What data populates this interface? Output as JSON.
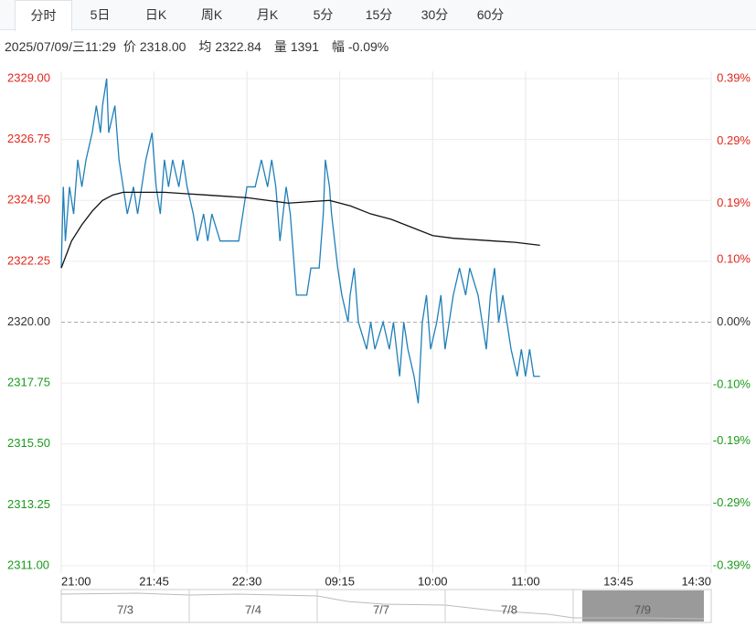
{
  "tabs": [
    "分时",
    "5日",
    "日K",
    "周K",
    "月K",
    "5分",
    "15分",
    "30分",
    "60分"
  ],
  "info": {
    "time": "2025/07/09/三11:29",
    "price_label": "价",
    "price": "2318.00",
    "avg_label": "均",
    "avg": "2322.84",
    "volume_label": "量",
    "volume": "1391",
    "change_label": "幅",
    "change": "-0.09%"
  },
  "chart_data": {
    "type": "line",
    "xlim": [
      0,
      315
    ],
    "xticks": [
      {
        "value": 0,
        "label": "21:00"
      },
      {
        "value": 45,
        "label": "21:45"
      },
      {
        "value": 90,
        "label": "22:30"
      },
      {
        "value": 135,
        "label": "09:15"
      },
      {
        "value": 180,
        "label": "10:00"
      },
      {
        "value": 225,
        "label": "11:00"
      },
      {
        "value": 270,
        "label": "13:45"
      },
      {
        "value": 315,
        "label": "14:30"
      }
    ],
    "ylim": [
      2311,
      2329
    ],
    "yticks": [
      {
        "value": 2329,
        "label": "2329.00"
      },
      {
        "value": 2326.75,
        "label": "2326.75"
      },
      {
        "value": 2324.5,
        "label": "2324.50"
      },
      {
        "value": 2322.25,
        "label": "2322.25"
      },
      {
        "value": 2320,
        "label": "2320.00"
      },
      {
        "value": 2317.75,
        "label": "2317.75"
      },
      {
        "value": 2315.5,
        "label": "2315.50"
      },
      {
        "value": 2313.25,
        "label": "2313.25"
      },
      {
        "value": 2311,
        "label": "2311.00"
      }
    ],
    "y2lim": [
      -0.39,
      0.39
    ],
    "y2ticks": [
      {
        "value": 0.39,
        "label": "0.39%"
      },
      {
        "value": 0.29,
        "label": "0.29%"
      },
      {
        "value": 0.19,
        "label": "0.19%"
      },
      {
        "value": 0.1,
        "label": "0.10%"
      },
      {
        "value": 0,
        "label": "0.00%"
      },
      {
        "value": -0.1,
        "label": "-0.10%"
      },
      {
        "value": -0.19,
        "label": "-0.19%"
      },
      {
        "value": -0.29,
        "label": "-0.29%"
      },
      {
        "value": -0.39,
        "label": "-0.39%"
      }
    ],
    "up_color": "#e0271c",
    "down_color": "#1a9a1a",
    "flat_color": "#333333",
    "series": [
      {
        "color": "#1f7fb8",
        "x": [
          0,
          1,
          2,
          4,
          6,
          8,
          10,
          12,
          15,
          17,
          19,
          20,
          22,
          23,
          26,
          28,
          30,
          32,
          35,
          37,
          39,
          41,
          44,
          46,
          48,
          50,
          52,
          54,
          57,
          59,
          61,
          64,
          66,
          69,
          71,
          73,
          77,
          86,
          88,
          90,
          94,
          97,
          100,
          102,
          104,
          106,
          109,
          111,
          113,
          114,
          119,
          121,
          125,
          127,
          128,
          130,
          131,
          134,
          136,
          139,
          140,
          142,
          144,
          148,
          150,
          152,
          156,
          159,
          161,
          164,
          166,
          168,
          171,
          173,
          175,
          177,
          179,
          182,
          184,
          186,
          188,
          190,
          193,
          196,
          198,
          202,
          204,
          206,
          208,
          210,
          212,
          214,
          216,
          218,
          221,
          223,
          225,
          227,
          229,
          232
        ],
        "values": [
          2322,
          2325,
          2323,
          2325,
          2324,
          2326,
          2325,
          2326,
          2327,
          2328,
          2327,
          2328,
          2329,
          2327,
          2328,
          2326,
          2325,
          2324,
          2325,
          2324,
          2325,
          2326,
          2327,
          2325,
          2324,
          2326,
          2325,
          2326,
          2325,
          2326,
          2325,
          2324,
          2323,
          2324,
          2323,
          2324,
          2323,
          2323,
          2324,
          2325,
          2325,
          2326,
          2325,
          2326,
          2325,
          2323,
          2325,
          2324,
          2322,
          2321,
          2321,
          2322,
          2322,
          2324,
          2326,
          2325,
          2324,
          2322,
          2321,
          2320,
          2321,
          2322,
          2320,
          2319,
          2320,
          2319,
          2320,
          2319,
          2320,
          2318,
          2320,
          2319,
          2318,
          2317,
          2320,
          2321,
          2319,
          2320,
          2321,
          2319,
          2320,
          2321,
          2322,
          2321,
          2322,
          2321,
          2320,
          2319,
          2321,
          2322,
          2320,
          2321,
          2320,
          2319,
          2318,
          2319,
          2318,
          2319,
          2318,
          2318
        ]
      },
      {
        "color": "#111111",
        "x": [
          0,
          5,
          10,
          15,
          20,
          25,
          30,
          40,
          50,
          60,
          70,
          80,
          90,
          100,
          110,
          120,
          130,
          140,
          150,
          160,
          170,
          180,
          190,
          200,
          210,
          220,
          232
        ],
        "values": [
          2322,
          2323,
          2323.6,
          2324.1,
          2324.5,
          2324.7,
          2324.8,
          2324.8,
          2324.8,
          2324.75,
          2324.7,
          2324.65,
          2324.6,
          2324.5,
          2324.4,
          2324.45,
          2324.5,
          2324.3,
          2324.0,
          2323.8,
          2323.5,
          2323.2,
          2323.1,
          2323.05,
          2323.0,
          2322.95,
          2322.84
        ]
      }
    ]
  },
  "navigator": [
    "7/3",
    "7/4",
    "7/7",
    "7/8",
    "7/9"
  ]
}
